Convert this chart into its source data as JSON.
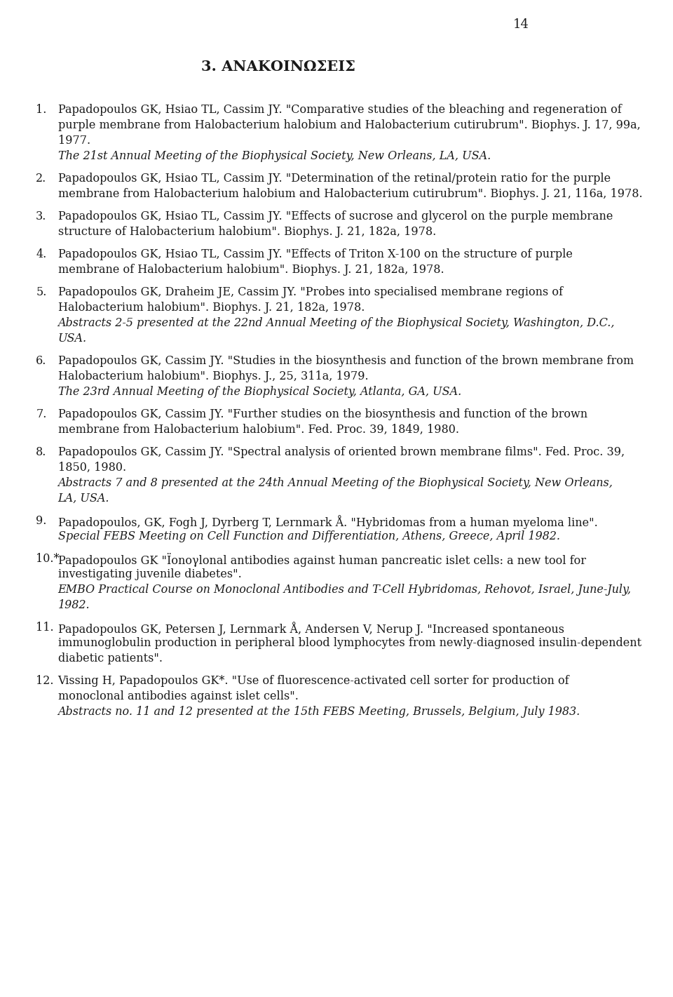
{
  "page_number": "14",
  "section_title": "3. ΑΝΑΚΟΙΝΩΣΕΙΣ",
  "background_color": "#ffffff",
  "text_color": "#1a1a1a",
  "entries": [
    {
      "number": "1.",
      "normal": "Papadopoulos GK, Hsiao TL, Cassim JY. \"Comparative studies of the bleaching and regeneration of purple membrane from Halobacterium halobium and Halobacterium cutirubrum\". Biophys. J. 17, 99a, 1977.",
      "italic": "The 21st Annual Meeting of the Biophysical Society, New Orleans, LA, USA."
    },
    {
      "number": "2.",
      "normal": "Papadopoulos GK, Hsiao TL, Cassim JY.  \"Determination of the retinal/protein ratio for the purple membrane from Halobacterium halobium and Halobacterium cutirubrum\". Biophys. J. 21, 116a, 1978.",
      "italic": ""
    },
    {
      "number": "3.",
      "normal": "Papadopoulos GK, Hsiao TL, Cassim JY.  \"Effects of sucrose and glycerol on the purple membrane structure of Halobacterium halobium\". Biophys. J. 21, 182a, 1978.",
      "italic": ""
    },
    {
      "number": "4.",
      "normal": "Papadopoulos GK, Hsiao TL, Cassim JY. \"Effects of Triton X-100 on the structure of purple membrane of Halobacterium halobium\". Biophys. J. 21, 182a, 1978.",
      "italic": ""
    },
    {
      "number": "5.",
      "normal": "Papadopoulos GK, Draheim JE, Cassim JY. \"Probes into specialised membrane regions of Halobacterium halobium\". Biophys. J. 21, 182a, 1978.",
      "italic": "Abstracts 2-5 presented at the 22nd Annual Meeting of the Biophysical Society, Washington, D.C., USA."
    },
    {
      "number": "6.",
      "normal": "Papadopoulos GK, Cassim JY. \"Studies in the biosynthesis and function of the brown membrane from Halobacterium halobium\". Biophys. J., 25, 311a, 1979.",
      "italic": "The 23rd Annual Meeting of the Biophysical Society, Atlanta, GA, USA."
    },
    {
      "number": "7.",
      "normal": "Papadopoulos GK, Cassim JY. \"Further studies on the biosynthesis and function of the brown membrane from Halobacterium halobium\". Fed. Proc. 39, 1849, 1980.",
      "italic": ""
    },
    {
      "number": "8.",
      "normal": "Papadopoulos GK, Cassim JY. \"Spectral analysis of oriented brown membrane films\". Fed. Proc. 39, 1850, 1980.",
      "italic": "Abstracts 7 and 8 presented at the 24th Annual Meeting of the Biophysical Society, New Orleans, LA, USA."
    },
    {
      "number": "9.",
      "normal": "Papadopoulos, GK, Fogh J, Dyrberg T, Lernmark Å. \"Hybridomas from a human myeloma line\".",
      "italic": "Special FEBS Meeting on Cell Function and Differentiation, Athens, Greece, April 1982."
    },
    {
      "number": "10.*",
      "normal": "Papadopoulos GK \"Ïonογlonal antibodies against human pancreatic islet cells: a new tool for investigating juvenile diabetes\".",
      "italic": "EMBO Practical Course on Monoclonal Antibodies and T-Cell Hybridomas, Rehovot, Israel, June-July, 1982."
    },
    {
      "number": "11.",
      "normal": "Papadopoulos GK, Petersen J, Lernmark Å, Andersen V, Nerup J. \"Increased spontaneous immunoglobulin production in peripheral blood lymphocytes from newly-diagnosed insulin-dependent diabetic patients\".",
      "italic": ""
    },
    {
      "number": "12.",
      "normal": "Vissing H, Papadopoulos GK*. \"Use of fluorescence-activated cell sorter for production of monoclonal antibodies against islet cells\".",
      "italic": "Abstracts no. 11 and 12 presented at the 15th FEBS Meeting, Brussels, Belgium, July 1983."
    }
  ]
}
